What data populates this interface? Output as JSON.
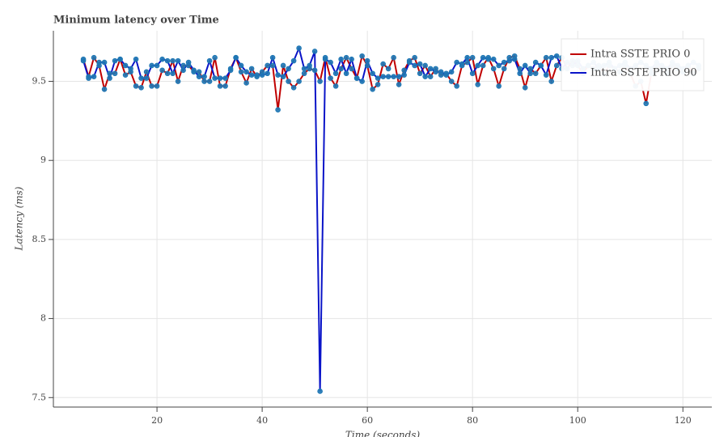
{
  "chart_data": {
    "type": "line",
    "title": "Minimum latency over Time",
    "x_label": "Time (seconds)",
    "y_label": "Latency (ms)",
    "x": [
      6,
      7,
      8,
      9,
      10,
      11,
      12,
      13,
      14,
      15,
      16,
      17,
      18,
      19,
      20,
      21,
      22,
      23,
      24,
      25,
      26,
      27,
      28,
      29,
      30,
      31,
      32,
      33,
      34,
      35,
      36,
      37,
      38,
      39,
      40,
      41,
      42,
      43,
      44,
      45,
      46,
      47,
      48,
      49,
      50,
      51,
      52,
      53,
      54,
      55,
      56,
      57,
      58,
      59,
      60,
      61,
      62,
      63,
      64,
      65,
      66,
      67,
      68,
      69,
      70,
      71,
      72,
      73,
      74,
      75,
      76,
      77,
      78,
      79,
      80,
      81,
      82,
      83,
      84,
      85,
      86,
      87,
      88,
      89,
      90,
      91,
      92,
      93,
      94,
      95,
      96,
      97,
      98,
      99,
      100,
      101,
      102,
      103,
      104,
      105,
      106,
      107,
      108,
      109,
      110,
      111,
      112,
      113,
      114,
      115,
      116,
      117,
      118,
      119,
      120,
      121,
      122,
      123
    ],
    "series": [
      {
        "name": "Intra SSTE PRIO 0",
        "color": "#c00000",
        "values": [
          9.64,
          9.53,
          9.65,
          9.6,
          9.45,
          9.55,
          9.55,
          9.64,
          9.54,
          9.56,
          9.47,
          9.46,
          9.56,
          9.47,
          9.47,
          9.57,
          9.55,
          9.63,
          9.5,
          9.6,
          9.6,
          9.56,
          9.56,
          9.5,
          9.5,
          9.65,
          9.47,
          9.47,
          9.58,
          9.65,
          9.56,
          9.49,
          9.58,
          9.53,
          9.56,
          9.6,
          9.6,
          9.32,
          9.6,
          9.5,
          9.46,
          9.5,
          9.55,
          9.58,
          9.57,
          9.5,
          9.65,
          9.52,
          9.47,
          9.58,
          9.65,
          9.58,
          9.52,
          9.66,
          9.6,
          9.45,
          9.48,
          9.61,
          9.58,
          9.65,
          9.48,
          9.57,
          9.63,
          9.65,
          9.55,
          9.6,
          9.53,
          9.58,
          9.54,
          9.55,
          9.5,
          9.47,
          9.6,
          9.62,
          9.65,
          9.48,
          9.6,
          9.65,
          9.58,
          9.47,
          9.58,
          9.65,
          9.66,
          9.58,
          9.46,
          9.58,
          9.55,
          9.6,
          9.65,
          9.5,
          9.6,
          9.65,
          9.58,
          9.63,
          9.6,
          9.55,
          9.6,
          9.58,
          9.6,
          9.55,
          9.6,
          9.58,
          9.56,
          9.6,
          9.55,
          9.47,
          9.5,
          9.36,
          9.55,
          9.6,
          9.58,
          9.55,
          9.6,
          9.58,
          9.56,
          9.6,
          9.55,
          9.58
        ]
      },
      {
        "name": "Intra SSTE PRIO 90",
        "color": "#0a14c8",
        "values": [
          9.63,
          9.52,
          9.53,
          9.62,
          9.62,
          9.52,
          9.63,
          9.64,
          9.6,
          9.58,
          9.64,
          9.52,
          9.52,
          9.6,
          9.6,
          9.64,
          9.63,
          9.55,
          9.63,
          9.57,
          9.62,
          9.57,
          9.53,
          9.53,
          9.63,
          9.52,
          9.52,
          9.52,
          9.57,
          9.65,
          9.6,
          9.56,
          9.54,
          9.54,
          9.54,
          9.55,
          9.65,
          9.54,
          9.53,
          9.58,
          9.63,
          9.71,
          9.58,
          9.6,
          9.69,
          7.54,
          9.64,
          9.62,
          9.55,
          9.64,
          9.55,
          9.64,
          9.52,
          9.5,
          9.63,
          9.55,
          9.52,
          9.53,
          9.53,
          9.53,
          9.53,
          9.54,
          9.62,
          9.6,
          9.61,
          9.53,
          9.58,
          9.56,
          9.56,
          9.54,
          9.56,
          9.62,
          9.61,
          9.65,
          9.55,
          9.6,
          9.65,
          9.64,
          9.64,
          9.6,
          9.62,
          9.63,
          9.64,
          9.55,
          9.6,
          9.55,
          9.62,
          9.6,
          9.54,
          9.65,
          9.66,
          9.58,
          9.62,
          9.6,
          9.63,
          9.58,
          9.6,
          9.62,
          9.58,
          9.6,
          9.62,
          9.58,
          9.6,
          9.62,
          9.58,
          9.6,
          9.62,
          9.6,
          9.58,
          9.62,
          9.6,
          9.58,
          9.62,
          9.6,
          9.58,
          9.6,
          9.62,
          9.6
        ]
      }
    ],
    "marker_color": "#1f77b4",
    "xlim": [
      0.3,
      125.5
    ],
    "xticks": [
      20,
      40,
      60,
      80,
      100,
      120
    ],
    "ylim": [
      7.44,
      9.82
    ],
    "yticks": [
      7.5,
      8,
      8.5,
      9,
      9.5
    ],
    "grid": true,
    "legend": "top-right"
  }
}
